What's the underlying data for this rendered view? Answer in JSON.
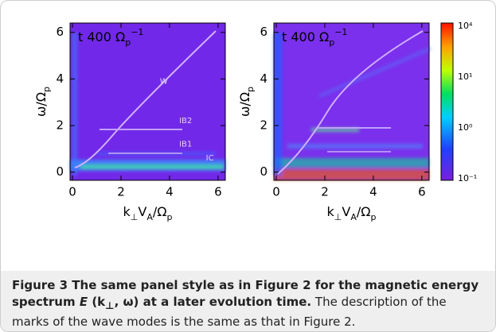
{
  "panels": [
    {
      "time_label": [
        {
          "text": "t  400  Ω"
        },
        {
          "text": "p",
          "sub": true
        },
        {
          "text": "−1",
          "sup": true
        }
      ],
      "xlim": [
        -0.1,
        6.3
      ],
      "ylim": [
        -0.35,
        6.4
      ],
      "xticks": [
        0,
        2,
        4,
        6
      ],
      "yticks": [
        0,
        2,
        4,
        6
      ],
      "x_label": [
        {
          "text": "k"
        },
        {
          "text": "⊥",
          "sub": true
        },
        {
          "text": "V"
        },
        {
          "text": "A",
          "sub": true
        },
        {
          "text": "/Ω"
        },
        {
          "text": "p",
          "sub": true
        }
      ],
      "y_label": [
        {
          "text": "ω/Ω"
        },
        {
          "text": "p",
          "sub": true
        }
      ],
      "annotations": [
        {
          "text": "W",
          "x": 3.6,
          "y": 3.9
        },
        {
          "text": "IB2",
          "x": 4.4,
          "y": 2.2
        },
        {
          "text": "IB1",
          "x": 4.4,
          "y": 1.2
        },
        {
          "text": "IC",
          "x": 5.5,
          "y": 0.6
        }
      ]
    },
    {
      "time_label": [
        {
          "text": "t  400  Ω"
        },
        {
          "text": "p",
          "sub": true
        },
        {
          "text": "−1",
          "sup": true
        }
      ],
      "xlim": [
        -0.1,
        6.3
      ],
      "ylim": [
        -0.35,
        6.4
      ],
      "xticks": [
        0,
        2,
        4,
        6
      ],
      "yticks": [
        0,
        2,
        4,
        6
      ],
      "x_label": [
        {
          "text": "k"
        },
        {
          "text": "⊥",
          "sub": true
        },
        {
          "text": "V"
        },
        {
          "text": "A",
          "sub": true
        },
        {
          "text": "/Ω"
        },
        {
          "text": "p",
          "sub": true
        }
      ],
      "y_label": [
        {
          "text": "ω/Ω"
        },
        {
          "text": "p",
          "sub": true
        }
      ],
      "annotations": []
    }
  ],
  "colorbar": {
    "labels": [
      "10⁴",
      "10¹",
      "10⁰",
      "10⁻¹"
    ]
  },
  "caption": {
    "label": "Figure 3",
    "title_1": "The same panel style as in Figure 2 for the magnetic energy spectrum ",
    "symbol": "E",
    "title_2": " (k",
    "title_sub": "⊥",
    "title_3": ", ω) at a later evolution time.",
    "text": "The description of the marks of the wave modes is the same as that in Figure 2."
  }
}
